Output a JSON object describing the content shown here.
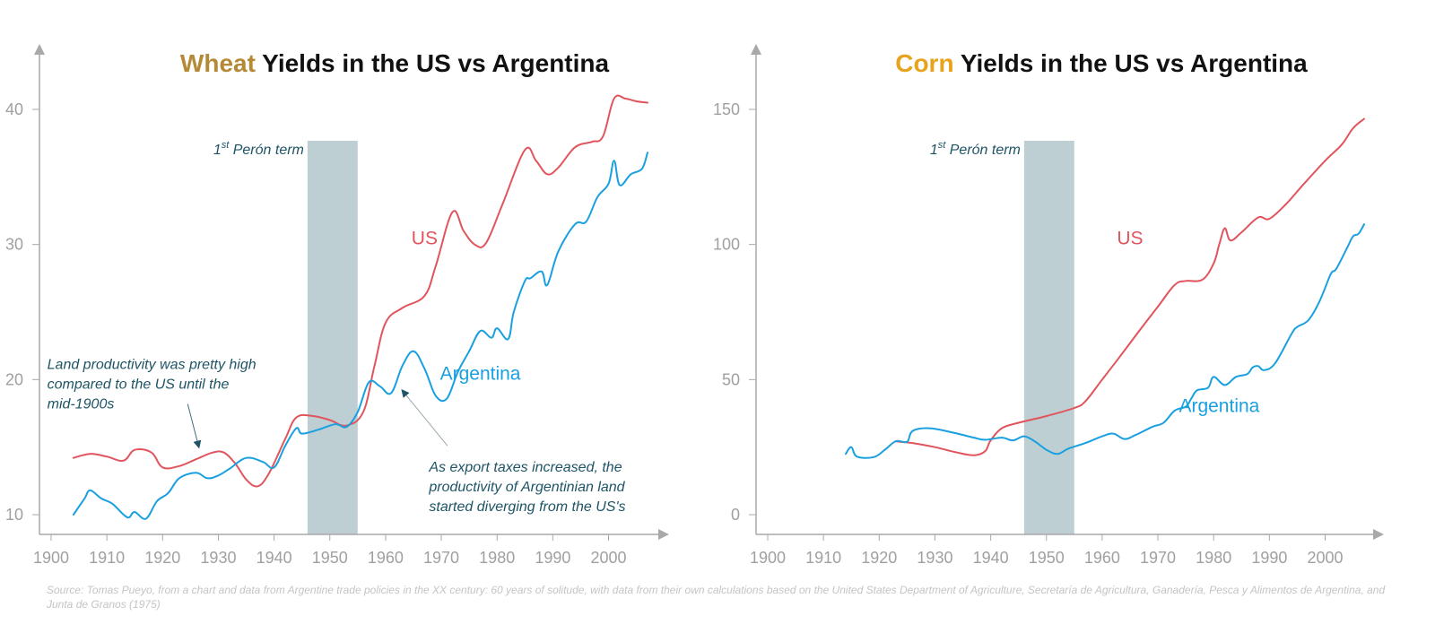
{
  "colors": {
    "us": "#e0555d",
    "argentina": "#1aa0e0",
    "band": "#becfd4",
    "axis": "#a9a9a9",
    "wheat": "#b58a37",
    "corn": "#e8a31c",
    "annotation": "#1e5466"
  },
  "source_text": "Source: Tomas Pueyo, from a chart and data from Argentine trade policies in the XX century: 60 years of solitude, with data from their own calculations based on the United States Department of Agriculture, Secretaría de Agricultura, Ganadería, Pesca y Alimentos de Argentina, and Junta de Granos (1975)",
  "chart_data": [
    {
      "type": "line",
      "title": {
        "highlight": "Wheat",
        "rest": " Yields in the US vs Argentina"
      },
      "xlabel": "",
      "ylabel": "",
      "xlim": [
        1898,
        2010
      ],
      "ylim": [
        9,
        42
      ],
      "x_ticks": [
        1900,
        1910,
        1920,
        1930,
        1940,
        1950,
        1960,
        1970,
        1980,
        1990,
        2000
      ],
      "y_ticks": [
        10,
        20,
        30,
        40
      ],
      "shaded_period": {
        "from": 1946,
        "to": 1955,
        "label_base": "1",
        "label_sup": "st",
        "label_rest": " Perón term"
      },
      "series": [
        {
          "name": "US",
          "key": "us",
          "points": [
            [
              1904,
              14.2
            ],
            [
              1907,
              14.5
            ],
            [
              1910,
              14.3
            ],
            [
              1913,
              14
            ],
            [
              1915,
              14.8
            ],
            [
              1918,
              14.6
            ],
            [
              1920,
              13.5
            ],
            [
              1923,
              13.6
            ],
            [
              1926,
              14.1
            ],
            [
              1929,
              14.6
            ],
            [
              1931,
              14.6
            ],
            [
              1933,
              13.8
            ],
            [
              1935,
              12.6
            ],
            [
              1937,
              12.1
            ],
            [
              1939,
              13
            ],
            [
              1942,
              15.6
            ],
            [
              1944,
              17.2
            ],
            [
              1947,
              17.3
            ],
            [
              1950,
              17
            ],
            [
              1953,
              16.6
            ],
            [
              1956,
              17.6
            ],
            [
              1958,
              21
            ],
            [
              1960,
              24.2
            ],
            [
              1963,
              25.3
            ],
            [
              1967,
              26.2
            ],
            [
              1969,
              28.4
            ],
            [
              1972,
              32.4
            ],
            [
              1974,
              31
            ],
            [
              1976,
              30
            ],
            [
              1978,
              30.1
            ],
            [
              1981,
              33
            ],
            [
              1985,
              37
            ],
            [
              1987,
              36.2
            ],
            [
              1989,
              35.2
            ],
            [
              1991,
              35.7
            ],
            [
              1994,
              37.2
            ],
            [
              1997,
              37.6
            ],
            [
              1999,
              38
            ],
            [
              2001,
              40.8
            ],
            [
              2003,
              40.8
            ],
            [
              2005,
              40.6
            ],
            [
              2007,
              40.5
            ]
          ],
          "label": {
            "text": "US",
            "x": 1967,
            "y": 30
          }
        },
        {
          "name": "Argentina",
          "key": "argentina",
          "points": [
            [
              1904,
              10
            ],
            [
              1906,
              11.2
            ],
            [
              1907,
              11.8
            ],
            [
              1909,
              11.2
            ],
            [
              1911,
              10.8
            ],
            [
              1913,
              10
            ],
            [
              1914,
              9.8
            ],
            [
              1915,
              10.2
            ],
            [
              1917,
              9.7
            ],
            [
              1919,
              11
            ],
            [
              1921,
              11.6
            ],
            [
              1923,
              12.7
            ],
            [
              1926,
              13.1
            ],
            [
              1928,
              12.7
            ],
            [
              1930,
              12.9
            ],
            [
              1932,
              13.4
            ],
            [
              1935,
              14.2
            ],
            [
              1938,
              13.9
            ],
            [
              1940,
              13.5
            ],
            [
              1942,
              15.1
            ],
            [
              1944,
              16.4
            ],
            [
              1945,
              16
            ],
            [
              1948,
              16.3
            ],
            [
              1951,
              16.7
            ],
            [
              1953,
              16.5
            ],
            [
              1955,
              17.6
            ],
            [
              1957,
              19.8
            ],
            [
              1959,
              19.5
            ],
            [
              1961,
              19
            ],
            [
              1963,
              21
            ],
            [
              1965,
              22.1
            ],
            [
              1967,
              20.8
            ],
            [
              1969,
              18.8
            ],
            [
              1971,
              18.6
            ],
            [
              1973,
              20.6
            ],
            [
              1975,
              22.1
            ],
            [
              1977,
              23.6
            ],
            [
              1979,
              23.1
            ],
            [
              1980,
              23.8
            ],
            [
              1982,
              23
            ],
            [
              1983,
              25
            ],
            [
              1985,
              27.3
            ],
            [
              1986,
              27.5
            ],
            [
              1988,
              28
            ],
            [
              1989,
              27
            ],
            [
              1991,
              29.5
            ],
            [
              1994,
              31.5
            ],
            [
              1996,
              31.7
            ],
            [
              1998,
              33.5
            ],
            [
              2000,
              34.5
            ],
            [
              2001,
              36.2
            ],
            [
              2002,
              34.4
            ],
            [
              2004,
              35.2
            ],
            [
              2006,
              35.6
            ],
            [
              2007,
              36.8
            ]
          ],
          "label": {
            "text": "Argentina",
            "x": 1977,
            "y": 20
          }
        }
      ],
      "annotations": [
        {
          "lines": [
            "Land productivity was pretty high",
            "compared to the US until the",
            "mid-1900s"
          ],
          "text_x": 1899.3,
          "text_y": 20.8,
          "arrow_from": [
            1924.5,
            18.2
          ],
          "arrow_to": [
            1926.5,
            15
          ]
        },
        {
          "lines": [
            "As export taxes increased, the",
            "productivity of Argentinian land",
            "started diverging from the US's"
          ],
          "text_x": 1967.8,
          "text_y": 13.2,
          "arrow_from": [
            1971.1,
            15.1
          ],
          "arrow_to": [
            1963,
            19.2
          ]
        }
      ]
    },
    {
      "type": "line",
      "title": {
        "highlight": "Corn",
        "rest": " Yields in the US vs Argentina"
      },
      "xlabel": "",
      "ylabel": "",
      "xlim": [
        1898,
        2010
      ],
      "ylim": [
        -5,
        152
      ],
      "x_ticks": [
        1900,
        1910,
        1920,
        1930,
        1940,
        1950,
        1960,
        1970,
        1980,
        1990,
        2000
      ],
      "y_ticks": [
        0,
        50,
        100,
        150
      ],
      "shaded_period": {
        "from": 1946,
        "to": 1955,
        "label_base": "1",
        "label_sup": "st",
        "label_rest": " Perón term"
      },
      "series": [
        {
          "name": "US",
          "key": "us",
          "points": [
            [
              1923,
              27.1
            ],
            [
              1926,
              26.5
            ],
            [
              1930,
              25
            ],
            [
              1934,
              23
            ],
            [
              1937,
              22
            ],
            [
              1939,
              23.5
            ],
            [
              1940,
              27.5
            ],
            [
              1942,
              32
            ],
            [
              1945,
              34
            ],
            [
              1950,
              36.5
            ],
            [
              1955,
              39.5
            ],
            [
              1957,
              42
            ],
            [
              1960,
              50
            ],
            [
              1963,
              58
            ],
            [
              1967,
              69
            ],
            [
              1970,
              77
            ],
            [
              1973,
              85
            ],
            [
              1975,
              86.5
            ],
            [
              1978,
              87
            ],
            [
              1980,
              93
            ],
            [
              1981,
              100
            ],
            [
              1982,
              106
            ],
            [
              1983,
              101.5
            ],
            [
              1985,
              104.5
            ],
            [
              1988,
              110
            ],
            [
              1990,
              109.5
            ],
            [
              1993,
              115
            ],
            [
              1996,
              122
            ],
            [
              2000,
              131
            ],
            [
              2003,
              137
            ],
            [
              2005,
              143
            ],
            [
              2007,
              146.5
            ]
          ],
          "label": {
            "text": "US",
            "x": 1965,
            "y": 100
          }
        },
        {
          "name": "Argentina",
          "key": "argentina",
          "points": [
            [
              1914,
              22.5
            ],
            [
              1915,
              25
            ],
            [
              1916,
              21.5
            ],
            [
              1919,
              21.3
            ],
            [
              1921,
              24
            ],
            [
              1923,
              27.2
            ],
            [
              1925,
              27
            ],
            [
              1926,
              31
            ],
            [
              1929,
              32
            ],
            [
              1933,
              30.5
            ],
            [
              1937,
              28.5
            ],
            [
              1939,
              27.7
            ],
            [
              1942,
              28.5
            ],
            [
              1944,
              27.5
            ],
            [
              1946,
              29
            ],
            [
              1948,
              27
            ],
            [
              1950,
              24
            ],
            [
              1952,
              22.5
            ],
            [
              1954,
              24.5
            ],
            [
              1957,
              26.5
            ],
            [
              1960,
              29
            ],
            [
              1962,
              30
            ],
            [
              1964,
              28
            ],
            [
              1966,
              29.5
            ],
            [
              1969,
              32.5
            ],
            [
              1971,
              34
            ],
            [
              1973,
              38.5
            ],
            [
              1975,
              40
            ],
            [
              1976,
              43
            ],
            [
              1977,
              46
            ],
            [
              1979,
              47
            ],
            [
              1980,
              51
            ],
            [
              1982,
              48
            ],
            [
              1984,
              51
            ],
            [
              1986,
              52
            ],
            [
              1987,
              54.5
            ],
            [
              1988,
              55
            ],
            [
              1989,
              53.5
            ],
            [
              1991,
              56
            ],
            [
              1994,
              67
            ],
            [
              1995,
              69.5
            ],
            [
              1997,
              72
            ],
            [
              1999,
              79
            ],
            [
              2001,
              89
            ],
            [
              2002,
              91
            ],
            [
              2004,
              99
            ],
            [
              2005,
              103
            ],
            [
              2006,
              104
            ],
            [
              2007,
              107.5
            ]
          ],
          "label": {
            "text": "Argentina",
            "x": 1981,
            "y": 38
          }
        }
      ],
      "annotations": []
    }
  ]
}
